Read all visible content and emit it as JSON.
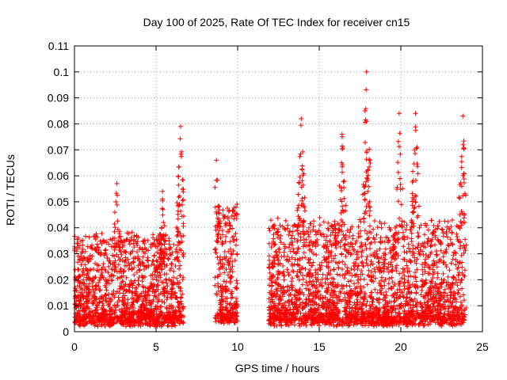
{
  "chart_data": {
    "type": "scatter",
    "title": "Day 100 of 2025, Rate Of TEC Index for receiver cn15",
    "xlabel": "GPS time / hours",
    "ylabel": "ROTI / TECUs",
    "xlim": [
      0,
      25
    ],
    "ylim": [
      0,
      0.11
    ],
    "x_ticks": [
      0,
      5,
      10,
      15,
      20,
      25
    ],
    "x_tick_labels": [
      "0",
      "5",
      "10",
      "15",
      "20",
      "25"
    ],
    "y_ticks": [
      0,
      0.01,
      0.02,
      0.03,
      0.04,
      0.05,
      0.06,
      0.07,
      0.08,
      0.09,
      0.1,
      0.11
    ],
    "y_tick_labels": [
      "0",
      "0.01",
      "0.02",
      "0.03",
      "0.04",
      "0.05",
      "0.06",
      "0.07",
      "0.08",
      "0.09",
      "0.1",
      "0.11"
    ],
    "grid": true,
    "marker": "+",
    "series_color": "#ff0000",
    "segments": [
      {
        "x_start": 0.0,
        "x_end": 6.7,
        "base": 0.002,
        "typical_max": 0.03
      },
      {
        "x_start": 8.6,
        "x_end": 10.0,
        "base": 0.003,
        "typical_max": 0.04
      },
      {
        "x_start": 11.9,
        "x_end": 24.0,
        "base": 0.002,
        "typical_max": 0.035
      }
    ],
    "peaks": [
      {
        "x": 2.6,
        "y": 0.057
      },
      {
        "x": 5.4,
        "y": 0.054
      },
      {
        "x": 6.5,
        "y": 0.079
      },
      {
        "x": 8.7,
        "y": 0.066
      },
      {
        "x": 13.9,
        "y": 0.082
      },
      {
        "x": 16.4,
        "y": 0.076
      },
      {
        "x": 17.9,
        "y": 0.1
      },
      {
        "x": 19.9,
        "y": 0.084
      },
      {
        "x": 20.9,
        "y": 0.084
      },
      {
        "x": 23.8,
        "y": 0.083
      }
    ]
  }
}
